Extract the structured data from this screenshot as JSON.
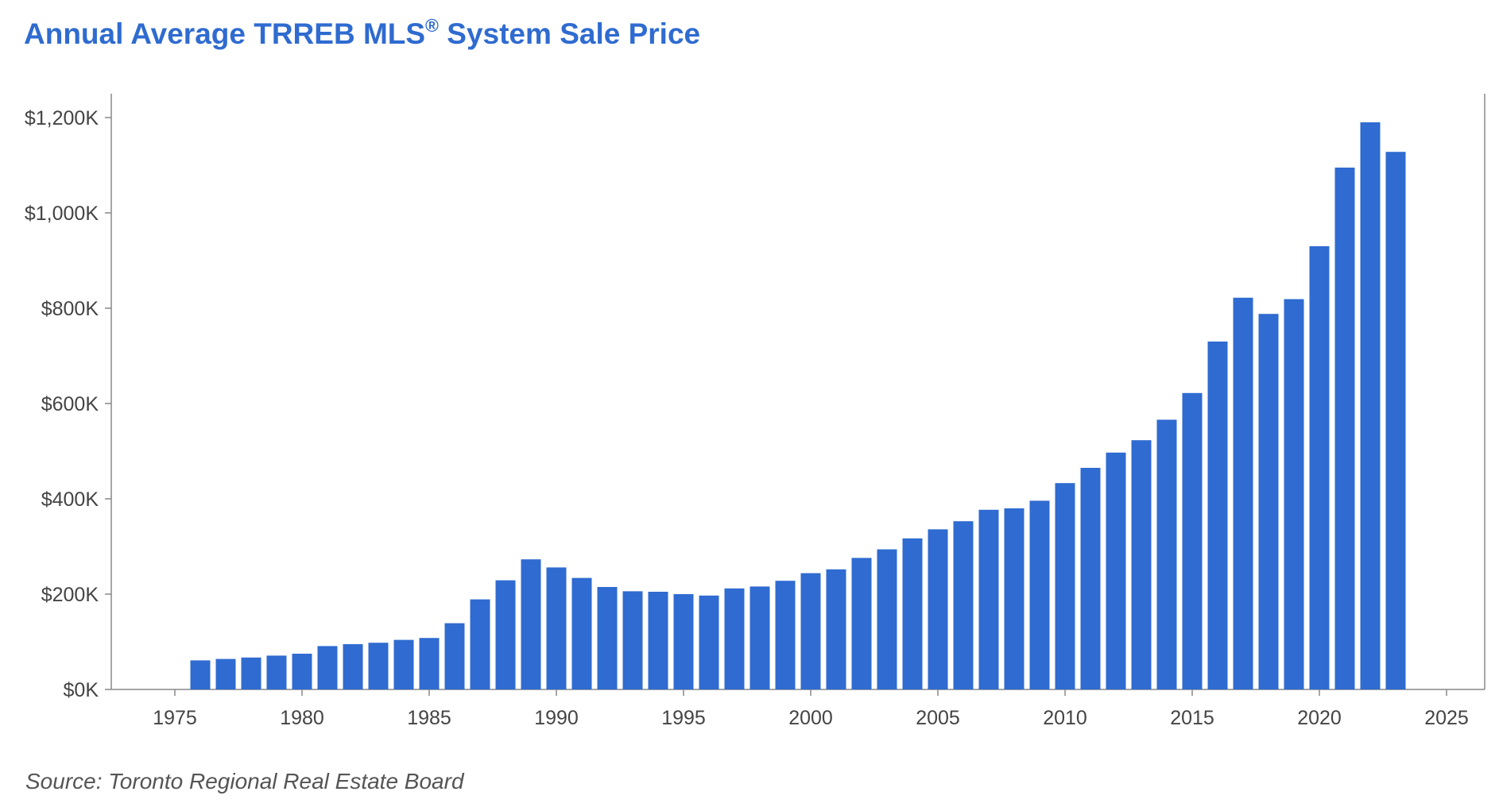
{
  "title": {
    "main": "Annual Average TRREB MLS",
    "mark": "®",
    "rest": " System Sale Price"
  },
  "source": "Source: Toronto Regional Real Estate Board",
  "colors": {
    "bar": "#2f6bd0",
    "title": "#2f6bd0",
    "axis": "#888888",
    "text": "#444444"
  },
  "chart_data": {
    "type": "bar",
    "title": "Annual Average TRREB MLS® System Sale Price",
    "xlabel": "",
    "ylabel": "",
    "xlim": [
      1972.5,
      2026.5
    ],
    "ylim": [
      0,
      1250
    ],
    "grid": false,
    "legend": "none",
    "x_ticks": [
      1975,
      1980,
      1985,
      1990,
      1995,
      2000,
      2005,
      2010,
      2015,
      2020,
      2025
    ],
    "x_tick_labels": [
      "1975",
      "1980",
      "1985",
      "1990",
      "1995",
      "2000",
      "2005",
      "2010",
      "2015",
      "2020",
      "2025"
    ],
    "y_ticks": [
      0,
      200,
      400,
      600,
      800,
      1000,
      1200
    ],
    "y_tick_labels": [
      "$0K",
      "$200K",
      "$400K",
      "$600K",
      "$800K",
      "$1,000K",
      "$1,200K"
    ],
    "series": [
      {
        "x": [
          1976,
          1977,
          1978,
          1979,
          1980,
          1981,
          1982,
          1983,
          1984,
          1985,
          1986,
          1987,
          1988,
          1989,
          1990,
          1991,
          1992,
          1993,
          1994,
          1995,
          1996,
          1997,
          1998,
          1999,
          2000,
          2001,
          2002,
          2003,
          2004,
          2005,
          2006,
          2007,
          2008,
          2009,
          2010,
          2011,
          2012,
          2013,
          2014,
          2015,
          2016,
          2017,
          2018,
          2019,
          2020,
          2021,
          2022,
          2023
        ],
        "values": [
          61,
          64,
          67,
          71,
          75,
          91,
          95,
          98,
          104,
          108,
          139,
          189,
          229,
          273,
          256,
          234,
          215,
          206,
          205,
          200,
          197,
          212,
          216,
          228,
          244,
          252,
          276,
          294,
          317,
          336,
          353,
          377,
          380,
          396,
          433,
          465,
          497,
          523,
          566,
          622,
          730,
          822,
          788,
          819,
          930,
          1095,
          1190,
          1128
        ]
      }
    ]
  }
}
